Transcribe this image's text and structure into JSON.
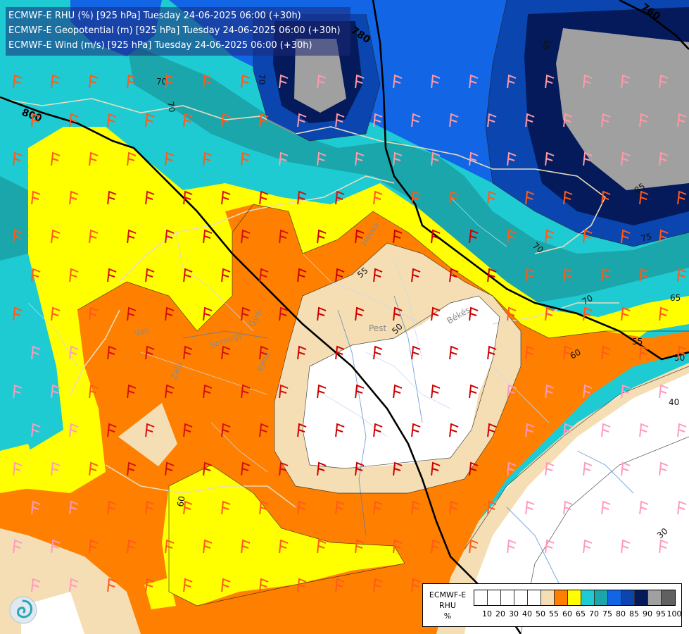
{
  "header": {
    "lines": [
      "ECMWF-E RHU (%) [925 hPa] Tuesday 24-06-2025 06:00 (+30h)",
      "ECMWF-E Geopotential (m) [925 hPa] Tuesday 24-06-2025 06:00 (+30h)",
      "ECMWF-E Wind (m/s) [925 hPa] Tuesday 24-06-2025 06:00 (+30h)"
    ]
  },
  "map": {
    "geopotential_labels": [
      "800",
      "780",
      "760"
    ],
    "rhu_contour_labels": [
      "70",
      "70",
      "95",
      "85",
      "75",
      "70",
      "65",
      "55",
      "50",
      "60",
      "55",
      "50",
      "40",
      "30",
      "60",
      "70",
      "70"
    ],
    "place_labels": [
      "Pest",
      "Heves",
      "Békés",
      "Vas",
      "Zala",
      "Tolna",
      "Somogy",
      "Győr"
    ]
  },
  "legend": {
    "title_lines": [
      "ECMWF-E",
      "RHU",
      "%"
    ],
    "swatch_colors": [
      "#ffffff",
      "#ffffff",
      "#ffffff",
      "#ffffff",
      "#ffffff",
      "#f5deb3",
      "#ff8000",
      "#ffff00",
      "#1ecbd2",
      "#1aa6aa",
      "#1266e6",
      "#0a45b0",
      "#041a5a",
      "#a0a0a0",
      "#606060"
    ],
    "tick_labels": [
      "10",
      "20",
      "30",
      "40",
      "50",
      "55",
      "60",
      "65",
      "70",
      "75",
      "80",
      "85",
      "90",
      "95",
      "100"
    ]
  },
  "colors": {
    "c_white": "#ffffff",
    "c_tan": "#f5deb3",
    "c_orange": "#ff8000",
    "c_yellow": "#ffff00",
    "c_cyan": "#1ecbd2",
    "c_teal": "#1aa6aa",
    "c_blue": "#1266e6",
    "c_mid": "#0a45b0",
    "c_navy": "#041a5a",
    "c_grey": "#a0a0a0"
  }
}
